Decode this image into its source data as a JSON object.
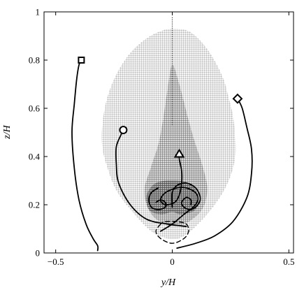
{
  "chart_data": {
    "type": "scatter",
    "title": "",
    "xlabel": "y/H",
    "ylabel": "z/H",
    "xlim": [
      -0.55,
      0.52
    ],
    "ylim": [
      0,
      1.0
    ],
    "xticks": [
      -0.5,
      0,
      0.5
    ],
    "xtick_labels": [
      "−0.5",
      "0",
      "0.5"
    ],
    "yticks": [
      0,
      0.2,
      0.4,
      0.6,
      0.8,
      1.0
    ],
    "ytick_labels": [
      "0",
      "0.2",
      "0.4",
      "0.6",
      "0.8",
      "1"
    ],
    "grid": false,
    "legend": "none",
    "colors": {
      "region_outer": "#c8c8c8",
      "region_core": "#8a8a8a",
      "region_dark": "#555555",
      "curve": "#000000",
      "axes": "#000000"
    },
    "regions": [
      {
        "shade": "light",
        "outline": [
          [
            0.0,
            0.93
          ],
          [
            0.07,
            0.92
          ],
          [
            0.13,
            0.87
          ],
          [
            0.18,
            0.8
          ],
          [
            0.22,
            0.72
          ],
          [
            0.24,
            0.65
          ],
          [
            0.26,
            0.57
          ],
          [
            0.27,
            0.48
          ],
          [
            0.27,
            0.4
          ],
          [
            0.25,
            0.32
          ],
          [
            0.21,
            0.24
          ],
          [
            0.14,
            0.15
          ],
          [
            0.05,
            0.07
          ],
          [
            -0.02,
            0.06
          ],
          [
            -0.09,
            0.09
          ],
          [
            -0.17,
            0.17
          ],
          [
            -0.24,
            0.26
          ],
          [
            -0.28,
            0.36
          ],
          [
            -0.3,
            0.44
          ],
          [
            -0.3,
            0.53
          ],
          [
            -0.28,
            0.64
          ],
          [
            -0.24,
            0.74
          ],
          [
            -0.18,
            0.83
          ],
          [
            -0.11,
            0.89
          ],
          [
            -0.05,
            0.92
          ]
        ]
      },
      {
        "shade": "core",
        "outline": [
          [
            0.0,
            0.78
          ],
          [
            0.03,
            0.7
          ],
          [
            0.07,
            0.55
          ],
          [
            0.1,
            0.45
          ],
          [
            0.13,
            0.36
          ],
          [
            0.15,
            0.26
          ],
          [
            0.12,
            0.17
          ],
          [
            0.02,
            0.11
          ],
          [
            -0.08,
            0.15
          ],
          [
            -0.12,
            0.25
          ],
          [
            -0.09,
            0.36
          ],
          [
            -0.06,
            0.45
          ],
          [
            -0.04,
            0.55
          ],
          [
            -0.02,
            0.68
          ]
        ]
      },
      {
        "shade": "dark",
        "outline": [
          [
            0.0,
            0.3
          ],
          [
            0.07,
            0.29
          ],
          [
            0.11,
            0.24
          ],
          [
            0.1,
            0.18
          ],
          [
            0.04,
            0.16
          ],
          [
            0.0,
            0.17
          ],
          [
            -0.05,
            0.16
          ],
          [
            -0.1,
            0.18
          ],
          [
            -0.11,
            0.24
          ],
          [
            -0.07,
            0.29
          ]
        ]
      }
    ],
    "centerline": {
      "x": 0.0,
      "y_range": [
        0.53,
        0.98
      ]
    },
    "trajectories": [
      {
        "marker": "square",
        "points": [
          [
            -0.32,
            0.01
          ],
          [
            -0.32,
            0.03
          ],
          [
            -0.34,
            0.06
          ],
          [
            -0.37,
            0.12
          ],
          [
            -0.4,
            0.22
          ],
          [
            -0.42,
            0.35
          ],
          [
            -0.43,
            0.5
          ],
          [
            -0.42,
            0.62
          ],
          [
            -0.41,
            0.72
          ],
          [
            -0.4,
            0.78
          ],
          [
            -0.39,
            0.8
          ]
        ]
      },
      {
        "marker": "circle",
        "points": [
          [
            0.06,
            0.11
          ],
          [
            -0.02,
            0.12
          ],
          [
            -0.11,
            0.14
          ],
          [
            -0.18,
            0.2
          ],
          [
            -0.23,
            0.29
          ],
          [
            -0.24,
            0.37
          ],
          [
            -0.24,
            0.44
          ],
          [
            -0.22,
            0.49
          ],
          [
            -0.21,
            0.51
          ]
        ]
      },
      {
        "marker": "diamond",
        "points": [
          [
            0.02,
            0.02
          ],
          [
            0.1,
            0.04
          ],
          [
            0.18,
            0.07
          ],
          [
            0.26,
            0.13
          ],
          [
            0.32,
            0.23
          ],
          [
            0.34,
            0.33
          ],
          [
            0.34,
            0.43
          ],
          [
            0.32,
            0.52
          ],
          [
            0.3,
            0.6
          ],
          [
            0.28,
            0.64
          ]
        ]
      },
      {
        "marker": "triangle",
        "points": [
          [
            -0.05,
            0.09
          ],
          [
            0.0,
            0.12
          ],
          [
            0.05,
            0.16
          ],
          [
            0.09,
            0.19
          ],
          [
            0.11,
            0.22
          ],
          [
            0.1,
            0.25
          ],
          [
            0.06,
            0.27
          ],
          [
            0.02,
            0.27
          ],
          [
            -0.03,
            0.25
          ],
          [
            -0.05,
            0.22
          ],
          [
            -0.03,
            0.2
          ],
          [
            0.01,
            0.21
          ],
          [
            0.03,
            0.24
          ],
          [
            0.04,
            0.29
          ],
          [
            0.04,
            0.34
          ],
          [
            0.03,
            0.39
          ],
          [
            0.03,
            0.41
          ]
        ]
      },
      {
        "marker": "none",
        "style": "solid",
        "points": [
          [
            0.0,
            0.19
          ],
          [
            0.0,
            0.25
          ],
          [
            0.02,
            0.28
          ],
          [
            0.06,
            0.29
          ],
          [
            0.1,
            0.27
          ],
          [
            0.12,
            0.23
          ],
          [
            0.11,
            0.2
          ],
          [
            0.08,
            0.18
          ],
          [
            0.05,
            0.19
          ],
          [
            0.04,
            0.21
          ],
          [
            0.06,
            0.23
          ],
          [
            0.08,
            0.22
          ],
          [
            0.08,
            0.2
          ]
        ]
      },
      {
        "marker": "none",
        "style": "solid",
        "points": [
          [
            -0.06,
            0.27
          ],
          [
            -0.09,
            0.25
          ],
          [
            -0.1,
            0.22
          ],
          [
            -0.09,
            0.19
          ],
          [
            -0.06,
            0.18
          ],
          [
            -0.03,
            0.19
          ],
          [
            -0.03,
            0.21
          ],
          [
            -0.05,
            0.22
          ],
          [
            -0.07,
            0.21
          ]
        ]
      },
      {
        "marker": "none",
        "style": "dashed",
        "points": [
          [
            -0.05,
            0.12
          ],
          [
            -0.07,
            0.09
          ],
          [
            -0.05,
            0.06
          ],
          [
            0.0,
            0.04
          ],
          [
            0.05,
            0.06
          ],
          [
            0.07,
            0.09
          ],
          [
            0.06,
            0.12
          ],
          [
            0.02,
            0.13
          ],
          [
            -0.03,
            0.13
          ],
          [
            -0.05,
            0.12
          ]
        ]
      }
    ]
  }
}
